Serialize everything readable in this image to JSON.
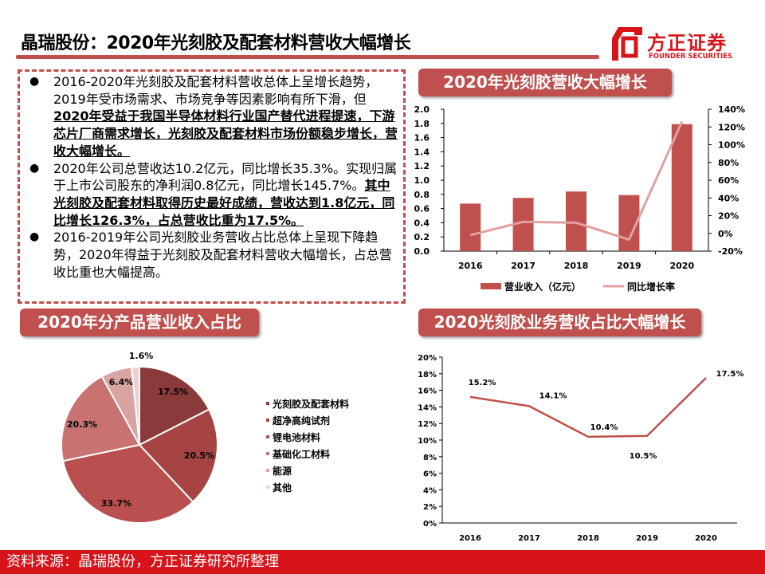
{
  "header": {
    "title": "晶瑞股份：2020年光刻胶及配套材料营收大幅增长",
    "logo_cn": "方正证券",
    "logo_en": "FOUNDER SECURITIES"
  },
  "bullets": [
    {
      "plain": "2016-2020年光刻胶及配套材料营收总体上呈增长趋势，2019年受市场需求、市场竞争等因素影响有所下滑，但",
      "bold": "2020年受益于我国半导体材料行业国产替代进程提速，下游芯片厂商需求增长，光刻胶及配套材料市场份额稳步增长，营收大幅增长。"
    },
    {
      "plain": "2020年公司总营收达10.2亿元，同比增长35.3%。实现归属于上市公司股东的净利润0.8亿元，同比增长145.7%。",
      "bold": "其中光刻胶及配套材料取得历史最好成绩，营收达到1.8亿元，同比增长126.3%，占总营收比重为17.5%。"
    },
    {
      "plain": "2016-2019年公司光刻胶业务营收占比总体上呈现下降趋势，2020年得益于光刻胶及配套材料营收大幅增长，占总营收比重也大幅提高。",
      "bold": ""
    }
  ],
  "badges": {
    "b1": "2020年光刻胶营收大幅增长",
    "b2": "2020年分产品营业收入占比",
    "b3": "2020光刻胶业务营收占比大幅增长"
  },
  "footer": "资料来源：晶瑞股份，方正证券研究所整理",
  "colors": {
    "accent": "#c0504d",
    "brand": "#d7141a",
    "line": "#e0a0a0"
  },
  "chart_data": [
    {
      "type": "bar",
      "categories": [
        "2016",
        "2017",
        "2018",
        "2019",
        "2020"
      ],
      "series": [
        {
          "name": "营业收入（亿元）",
          "type": "bar",
          "values": [
            0.67,
            0.75,
            0.84,
            0.79,
            1.79
          ],
          "axis": "left"
        },
        {
          "name": "同比增长率",
          "type": "line",
          "values": [
            -2,
            13,
            12,
            -7,
            126
          ],
          "axis": "right"
        }
      ],
      "ylim": [
        0,
        2.0
      ],
      "yticks": [
        "0.0",
        "0.2",
        "0.4",
        "0.6",
        "0.8",
        "1.0",
        "1.2",
        "1.4",
        "1.6",
        "1.8",
        "2.0"
      ],
      "y2lim": [
        -20,
        140
      ],
      "y2ticks": [
        "-20%",
        "0%",
        "20%",
        "40%",
        "60%",
        "80%",
        "100%",
        "120%",
        "140%"
      ],
      "legend": "bottom"
    },
    {
      "type": "pie",
      "labels": [
        "光刻胶及配套材料",
        "超净高纯试剂",
        "锂电池材料",
        "基础化工材料",
        "能源",
        "其他"
      ],
      "values": [
        17.5,
        20.5,
        33.7,
        20.3,
        6.4,
        1.6
      ],
      "value_labels": [
        "17.5%",
        "20.5%",
        "33.7%",
        "20.3%",
        "6.4%",
        "1.6%"
      ],
      "colors": [
        "#8b3a3a",
        "#a64444",
        "#b94f4f",
        "#c87272",
        "#d9a3a3",
        "#ecd0d0"
      ],
      "legend": "right"
    },
    {
      "type": "line",
      "categories": [
        "2016",
        "2017",
        "2018",
        "2019",
        "2020"
      ],
      "values": [
        15.2,
        14.1,
        10.4,
        10.5,
        17.5
      ],
      "value_labels": [
        "15.2%",
        "14.1%",
        "10.4%",
        "10.5%",
        "17.5%"
      ],
      "ylim": [
        0,
        20
      ],
      "yticks": [
        "0%",
        "2%",
        "4%",
        "6%",
        "8%",
        "10%",
        "12%",
        "14%",
        "16%",
        "18%",
        "20%"
      ]
    }
  ]
}
